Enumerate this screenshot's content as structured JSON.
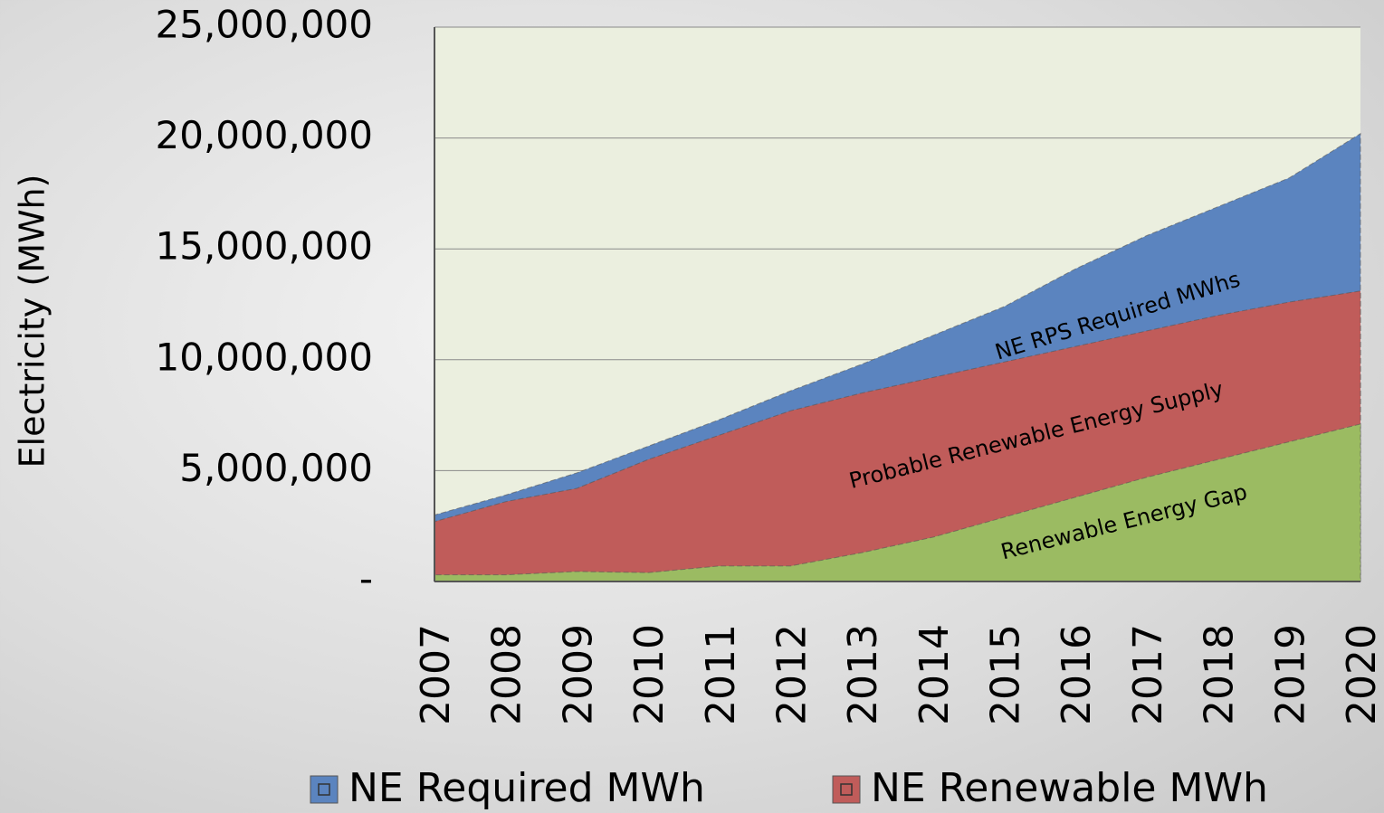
{
  "chart_data": {
    "type": "area",
    "y_label": "Electricity   (MWh)",
    "categories": [
      "2007",
      "2008",
      "2009",
      "2010",
      "2011",
      "2012",
      "2013",
      "2014",
      "2015",
      "2016",
      "2017",
      "2018",
      "2019",
      "2020"
    ],
    "series": [
      {
        "name": "NE Required MWh",
        "color": "#5b84bf",
        "values": [
          3000000,
          3900000,
          4900000,
          6100000,
          7300000,
          8600000,
          9800000,
          11100000,
          12400000,
          14100000,
          15600000,
          16900000,
          18200000,
          20200000
        ]
      },
      {
        "name": "NE Renewable MWh",
        "color": "#c05c5a",
        "values": [
          2700000,
          3600000,
          4200000,
          5500000,
          6600000,
          7700000,
          8500000,
          9200000,
          9900000,
          10600000,
          11300000,
          12000000,
          12600000,
          13100000
        ]
      },
      {
        "color": "#9bbb62",
        "values": [
          300000,
          300000,
          450000,
          400000,
          700000,
          700000,
          1300000,
          2000000,
          2900000,
          3800000,
          4700000,
          5500000,
          6300000,
          7100000
        ]
      }
    ],
    "annotations": [
      "NE  RPS Required MWhs",
      "Probable Renewable Energy Supply",
      "Renewable Energy Gap"
    ],
    "ylim": [
      0,
      25000000
    ],
    "yticks": [
      {
        "value": 0,
        "label": "-"
      },
      {
        "value": 5000000,
        "label": "5,000,000"
      },
      {
        "value": 10000000,
        "label": "10,000,000"
      },
      {
        "value": 15000000,
        "label": "15,000,000"
      },
      {
        "value": 20000000,
        "label": "20,000,000"
      },
      {
        "value": 25000000,
        "label": "25,000,000"
      }
    ],
    "grid": true,
    "plot_background": "#ebefdf"
  }
}
